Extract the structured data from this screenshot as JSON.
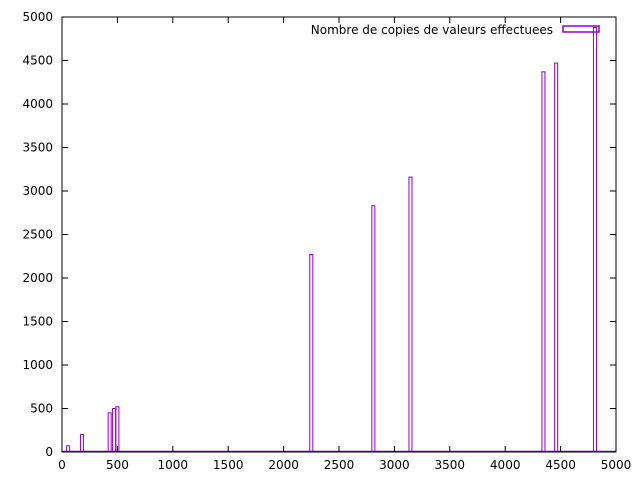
{
  "chart_data": {
    "type": "bar",
    "title": "",
    "xlabel": "",
    "ylabel": "",
    "xlim": [
      0,
      5000
    ],
    "ylim": [
      0,
      5000
    ],
    "xticks": [
      0,
      500,
      1000,
      1500,
      2000,
      2500,
      3000,
      3500,
      4000,
      4500,
      5000
    ],
    "yticks": [
      0,
      500,
      1000,
      1500,
      2000,
      2500,
      3000,
      3500,
      4000,
      4500,
      5000
    ],
    "grid": false,
    "legend_position": "top-right",
    "series": [
      {
        "name": "Nombre de copies de valeurs effectuees",
        "color": "#9400d3",
        "x": [
          55,
          180,
          430,
          470,
          500,
          2250,
          2810,
          3145,
          4345,
          4460,
          4810
        ],
        "values": [
          70,
          200,
          450,
          500,
          520,
          2270,
          2830,
          3160,
          4370,
          4470,
          4880
        ]
      }
    ]
  }
}
